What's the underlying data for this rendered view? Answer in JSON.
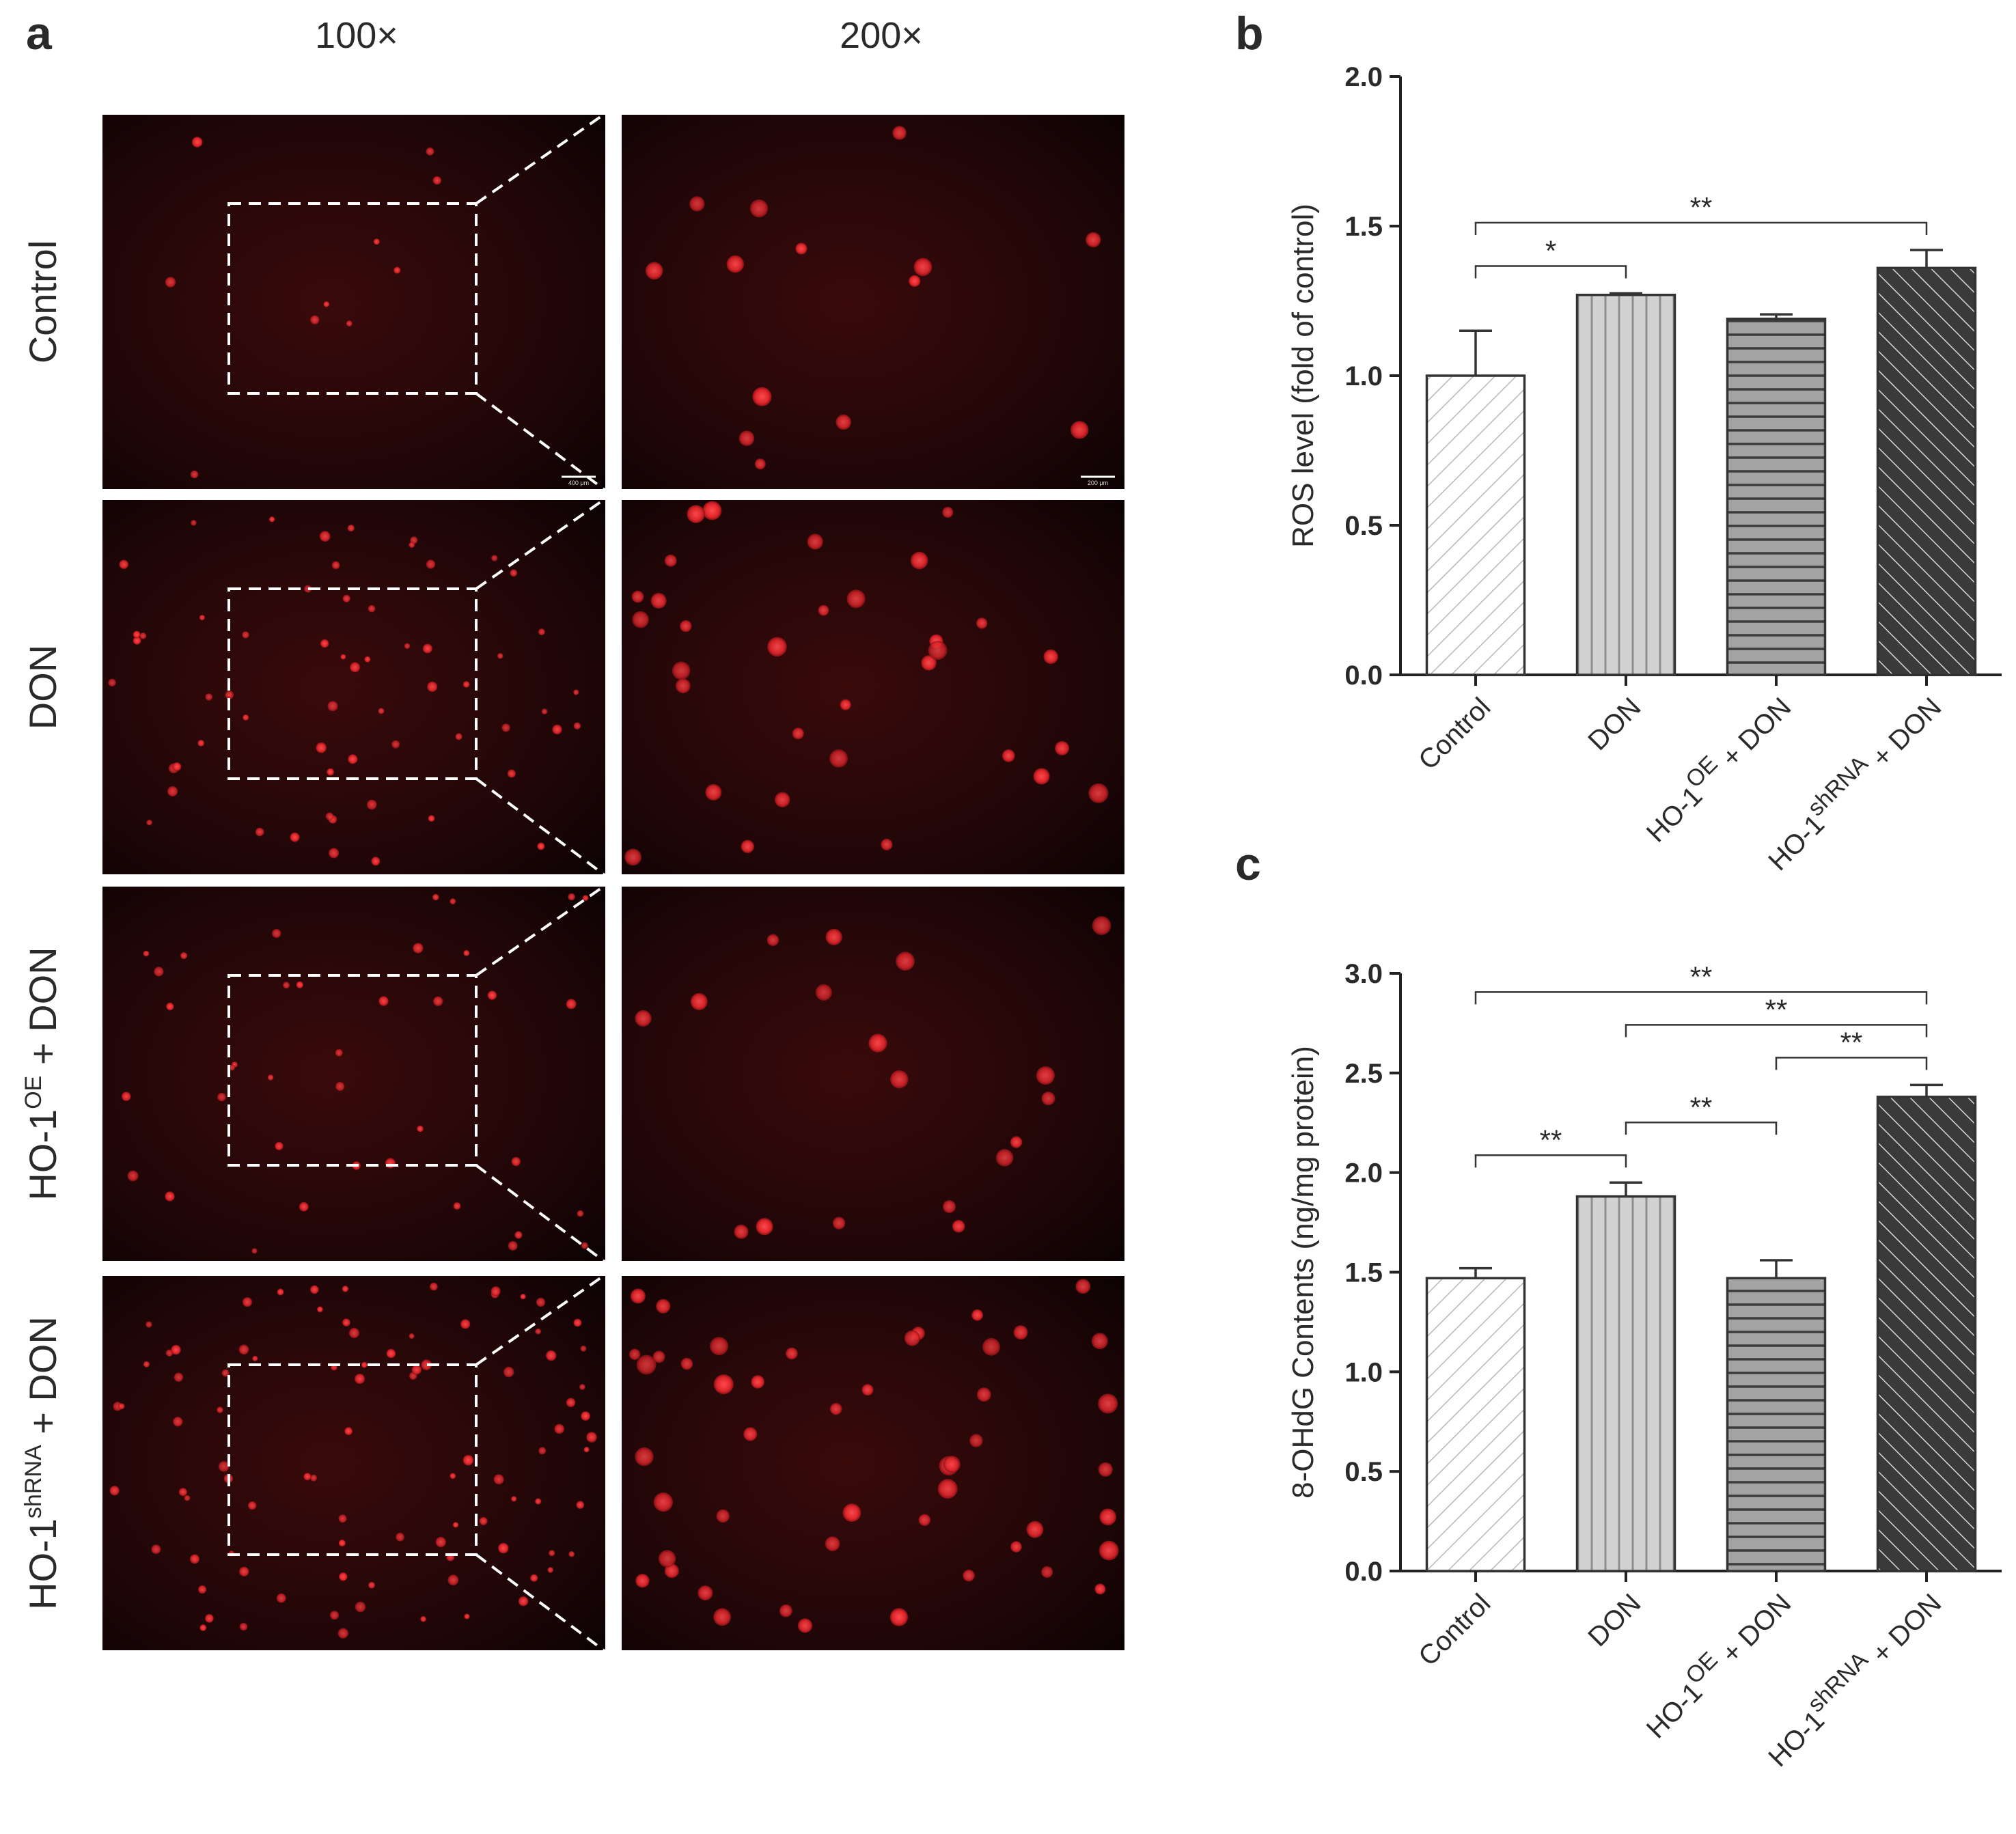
{
  "panel_a": {
    "label": "a",
    "columns": [
      "100×",
      "200×"
    ],
    "rows": [
      {
        "text": "Control",
        "sup": "",
        "suffix": "",
        "density": "low"
      },
      {
        "text": "DON",
        "sup": "",
        "suffix": "",
        "density": "medium"
      },
      {
        "text": "HO-1",
        "sup": "OE",
        "suffix": " + DON",
        "density": "low-medium"
      },
      {
        "text": "HO-1",
        "sup": "shRNA",
        "suffix": " + DON",
        "density": "high"
      }
    ],
    "scale_bars": [
      "400 μm",
      "200 μm"
    ],
    "colors": {
      "background": "#1a0506",
      "cell": "#e0262b",
      "frame": "#ffffff"
    }
  },
  "chart_data": [
    {
      "panel_label": "b",
      "type": "bar",
      "categories": [
        "Control",
        "DON",
        "HO-1^OE + DON",
        "HO-1^shRNA + DON"
      ],
      "category_labels": [
        {
          "text": "Control",
          "sup": "",
          "suffix": ""
        },
        {
          "text": "DON",
          "sup": "",
          "suffix": ""
        },
        {
          "text": "HO-1",
          "sup": "OE",
          "suffix": "  + DON"
        },
        {
          "text": "HO-1",
          "sup": "shRNA",
          "suffix": "  + DON"
        }
      ],
      "values": [
        1.0,
        1.27,
        1.19,
        1.36
      ],
      "errors": [
        0.15,
        0.005,
        0.015,
        0.06
      ],
      "ylabel": "ROS level (fold of control)",
      "ylim": [
        0,
        2.0
      ],
      "yticks": [
        "0.0",
        "0.5",
        "1.0",
        "1.5",
        "2.0"
      ],
      "bar_fills": [
        "#ffffff",
        "#cfcfcf",
        "#9a9a9a",
        "#404040"
      ],
      "bar_patterns": [
        "diagonal",
        "vertical",
        "horizontal",
        "diagonal-back"
      ],
      "significance": [
        {
          "from": 0,
          "to": 1,
          "label": "*"
        },
        {
          "from": 0,
          "to": 3,
          "label": "**"
        }
      ]
    },
    {
      "panel_label": "c",
      "type": "bar",
      "categories": [
        "Control",
        "DON",
        "HO-1^OE + DON",
        "HO-1^shRNA + DON"
      ],
      "category_labels": [
        {
          "text": "Control",
          "sup": "",
          "suffix": ""
        },
        {
          "text": "DON",
          "sup": "",
          "suffix": ""
        },
        {
          "text": "HO-1",
          "sup": "OE",
          "suffix": "  + DON"
        },
        {
          "text": "HO-1",
          "sup": "shRNA",
          "suffix": "  + DON"
        }
      ],
      "values": [
        1.47,
        1.88,
        1.47,
        2.38
      ],
      "errors": [
        0.05,
        0.07,
        0.09,
        0.06
      ],
      "ylabel": "8-OHdG  Contents (ng/mg protein)",
      "ylim": [
        0,
        3.0
      ],
      "yticks": [
        "0.0",
        "0.5",
        "1.0",
        "1.5",
        "2.0",
        "2.5",
        "3.0"
      ],
      "bar_fills": [
        "#ffffff",
        "#cfcfcf",
        "#9a9a9a",
        "#404040"
      ],
      "bar_patterns": [
        "diagonal",
        "vertical",
        "horizontal",
        "diagonal-back"
      ],
      "significance": [
        {
          "from": 0,
          "to": 1,
          "label": "**"
        },
        {
          "from": 1,
          "to": 2,
          "label": "**"
        },
        {
          "from": 2,
          "to": 3,
          "label": "**"
        },
        {
          "from": 1,
          "to": 3,
          "label": "**"
        },
        {
          "from": 0,
          "to": 3,
          "label": "**"
        }
      ]
    }
  ]
}
